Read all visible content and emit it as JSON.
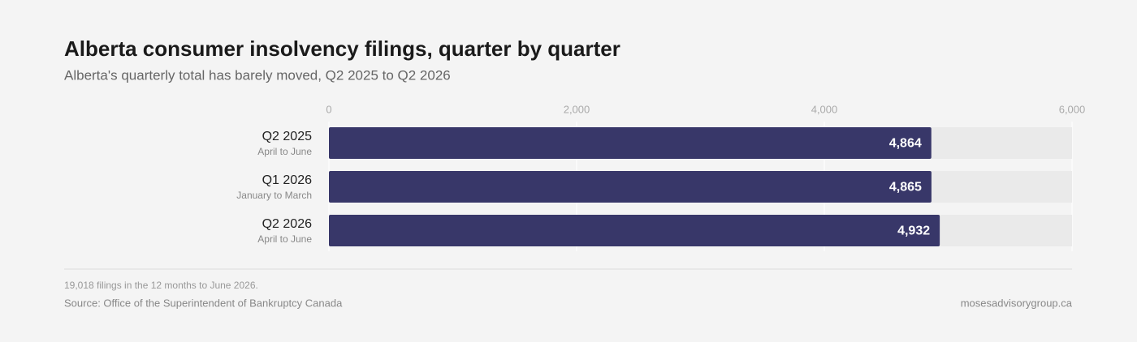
{
  "chart_data": {
    "type": "bar",
    "orientation": "horizontal",
    "title": "Alberta consumer insolvency filings, quarter by quarter",
    "subtitle": "Alberta's quarterly total has barely moved, Q2 2025 to Q2 2026",
    "categories": [
      "Q2 2025",
      "Q1 2026",
      "Q2 2026"
    ],
    "category_notes": [
      "April to June",
      "January to March",
      "April to June"
    ],
    "values": [
      4864,
      4865,
      4932
    ],
    "value_labels": [
      "4,864",
      "4,865",
      "4,932"
    ],
    "color": "#383769",
    "xlim": [
      0,
      6000
    ],
    "xticks": [
      0,
      {
        "value": 2000,
        "label": "2,000"
      },
      {
        "value": 4000,
        "label": "4,000"
      },
      {
        "value": 6000,
        "label": "6,000"
      }
    ],
    "grid": true,
    "footnote": "19,018 filings in the 12 months to June 2026.",
    "source": "Source: Office of the Superintendent of Bankruptcy Canada",
    "credit": "mosesadvisorygroup.ca"
  }
}
